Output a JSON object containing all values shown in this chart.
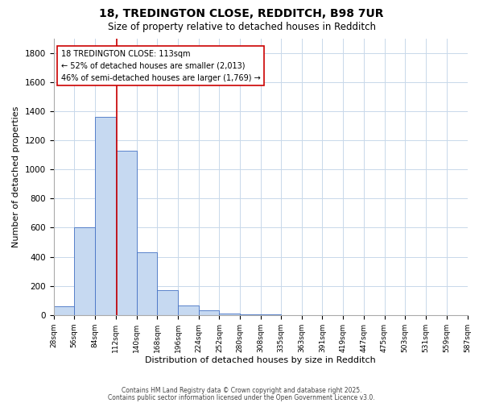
{
  "title": "18, TREDINGTON CLOSE, REDDITCH, B98 7UR",
  "subtitle": "Size of property relative to detached houses in Redditch",
  "xlabel": "Distribution of detached houses by size in Redditch",
  "ylabel": "Number of detached properties",
  "bar_edges": [
    28,
    56,
    84,
    112,
    140,
    168,
    196,
    224,
    252,
    280,
    308,
    335,
    363,
    391,
    419,
    447,
    475,
    503,
    531,
    559,
    587
  ],
  "bar_heights": [
    60,
    600,
    1360,
    1130,
    430,
    170,
    65,
    35,
    10,
    5,
    2,
    0,
    0,
    0,
    0,
    0,
    0,
    0,
    0,
    0
  ],
  "bar_color": "#c6d9f1",
  "bar_edge_color": "#4472c4",
  "property_size": 113,
  "property_line_color": "#cc0000",
  "annotation_title": "18 TREDINGTON CLOSE: 113sqm",
  "annotation_line1": "← 52% of detached houses are smaller (2,013)",
  "annotation_line2": "46% of semi-detached houses are larger (1,769) →",
  "annotation_box_color": "#ffffff",
  "annotation_box_edge_color": "#cc0000",
  "ylim": [
    0,
    1900
  ],
  "yticks": [
    0,
    200,
    400,
    600,
    800,
    1000,
    1200,
    1400,
    1600,
    1800
  ],
  "tick_labels": [
    "28sqm",
    "56sqm",
    "84sqm",
    "112sqm",
    "140sqm",
    "168sqm",
    "196sqm",
    "224sqm",
    "252sqm",
    "280sqm",
    "308sqm",
    "335sqm",
    "363sqm",
    "391sqm",
    "419sqm",
    "447sqm",
    "475sqm",
    "503sqm",
    "531sqm",
    "559sqm",
    "587sqm"
  ],
  "footer1": "Contains HM Land Registry data © Crown copyright and database right 2025.",
  "footer2": "Contains public sector information licensed under the Open Government Licence v3.0.",
  "background_color": "#ffffff",
  "grid_color": "#c8d8ea",
  "title_fontsize": 10,
  "subtitle_fontsize": 8.5,
  "xlabel_fontsize": 8,
  "ylabel_fontsize": 8,
  "tick_fontsize": 6.5,
  "ytick_fontsize": 7.5,
  "annotation_fontsize": 7,
  "footer_fontsize": 5.5
}
